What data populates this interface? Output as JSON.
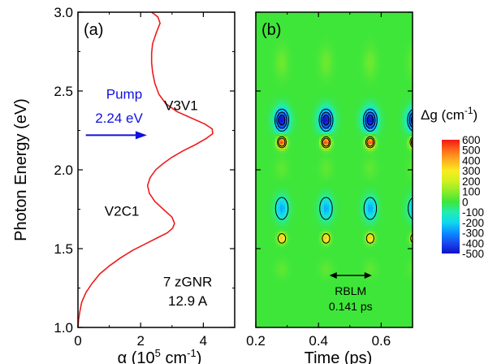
{
  "chart_data": [
    {
      "panel": "a",
      "type": "line",
      "panel_label": "(a)",
      "ylabel": "Photon Energy (eV)",
      "xlabel_main": "α (10",
      "xlabel_sup": "5",
      "xlabel_end": " cm",
      "xlabel_sup2": "-1",
      "xlabel_close": ")",
      "xlim": [
        0,
        5
      ],
      "ylim": [
        1.0,
        3.0
      ],
      "xticks": [
        0,
        2,
        4
      ],
      "yticks": [
        1.0,
        1.5,
        2.0,
        2.5,
        3.0
      ],
      "ytick_labels": [
        "1.0",
        "1.5",
        "2.0",
        "2.5",
        "3.0"
      ],
      "line_color": "#ee1c1c",
      "series": [
        {
          "x": [
            0.0,
            0.02,
            0.06,
            0.12,
            0.25,
            0.45,
            0.7,
            1.0,
            1.35,
            1.75,
            2.15,
            2.55,
            2.85,
            3.02,
            3.08,
            3.0,
            2.72,
            2.45,
            2.28,
            2.22,
            2.3,
            2.48,
            2.72,
            3.0,
            3.35,
            3.75,
            4.1,
            4.3,
            4.28,
            4.05,
            3.6,
            3.15,
            2.8,
            2.58,
            2.45,
            2.38,
            2.35,
            2.35,
            2.38,
            2.5,
            2.62,
            2.55,
            2.35
          ],
          "y": [
            1.0,
            1.05,
            1.1,
            1.16,
            1.22,
            1.28,
            1.34,
            1.39,
            1.44,
            1.49,
            1.53,
            1.57,
            1.6,
            1.63,
            1.66,
            1.7,
            1.75,
            1.8,
            1.85,
            1.9,
            1.95,
            2.0,
            2.04,
            2.08,
            2.12,
            2.16,
            2.2,
            2.23,
            2.26,
            2.29,
            2.33,
            2.37,
            2.42,
            2.48,
            2.55,
            2.62,
            2.68,
            2.74,
            2.8,
            2.87,
            2.93,
            2.97,
            3.0
          ]
        }
      ],
      "annotations": {
        "pump_label": "Pump",
        "pump_energy": "2.24 eV",
        "pump_arrow_x": [
          0.25,
          2.2
        ],
        "pump_arrow_y": 2.22,
        "pump_color": "#1010e0",
        "peak_v3v1": "V3V1",
        "peak_v2c1": "V2C1",
        "sample_line1": "7 zGNR",
        "sample_line2": "12.9 A"
      }
    },
    {
      "panel": "b",
      "type": "heatmap",
      "panel_label": "(b)",
      "xlabel": "Time (ps)",
      "xlim": [
        0.2,
        0.7
      ],
      "ylim": [
        1.0,
        3.0
      ],
      "xticks": [
        0.2,
        0.4,
        0.6
      ],
      "xtick_labels": [
        "0.2",
        "0.4",
        "0.6"
      ],
      "yticks": [
        1.0,
        1.5,
        2.0,
        2.5,
        3.0
      ],
      "background_value": 0,
      "period_label": "RBLM",
      "period_value": "0.141 ps",
      "period_arrow_x": [
        0.435,
        0.57
      ],
      "period_arrow_y": 1.33,
      "time_columns": [
        0.283,
        0.424,
        0.565,
        0.706
      ],
      "features": [
        {
          "energy": 2.315,
          "value": -500,
          "half_width_ps": 0.022,
          "half_height_eV": 0.07,
          "contours": 3
        },
        {
          "energy": 2.175,
          "value": 560,
          "half_width_ps": 0.014,
          "half_height_eV": 0.035,
          "contours": 2
        },
        {
          "energy": 1.755,
          "value": -260,
          "half_width_ps": 0.02,
          "half_height_eV": 0.07,
          "contours": 1
        },
        {
          "energy": 1.565,
          "value": 380,
          "half_width_ps": 0.012,
          "half_height_eV": 0.03,
          "contours": 1
        },
        {
          "energy": 2.68,
          "value": 60,
          "half_width_ps": 0.02,
          "half_height_eV": 0.09,
          "contours": 0
        },
        {
          "energy": 2.01,
          "value": 40,
          "half_width_ps": 0.02,
          "half_height_eV": 0.06,
          "contours": 0
        },
        {
          "energy": 1.37,
          "value": 40,
          "half_width_ps": 0.02,
          "half_height_eV": 0.05,
          "contours": 0
        }
      ],
      "colorbar": {
        "title": "Δg (cm",
        "title_sup": "-1",
        "title_close": ")",
        "range": [
          -500,
          600
        ],
        "tick_values": [
          600,
          500,
          400,
          300,
          200,
          100,
          0,
          -100,
          -200,
          -300,
          -400,
          -500
        ],
        "tick_labels": [
          "600",
          "500",
          "400",
          "300",
          "200",
          "100",
          "0",
          "-100",
          "-200",
          "-300",
          "-400",
          "-500"
        ],
        "stops": [
          {
            "value": -500,
            "color": "#1010c8"
          },
          {
            "value": -400,
            "color": "#1848f0"
          },
          {
            "value": -300,
            "color": "#0c8cff"
          },
          {
            "value": -200,
            "color": "#10d8f0"
          },
          {
            "value": -100,
            "color": "#22ecb0"
          },
          {
            "value": 0,
            "color": "#3ee63a"
          },
          {
            "value": 100,
            "color": "#8cec2a"
          },
          {
            "value": 200,
            "color": "#d0f020"
          },
          {
            "value": 300,
            "color": "#f8ec20"
          },
          {
            "value": 400,
            "color": "#ffb020"
          },
          {
            "value": 500,
            "color": "#ff6a1a"
          },
          {
            "value": 600,
            "color": "#f01818"
          }
        ]
      }
    }
  ]
}
